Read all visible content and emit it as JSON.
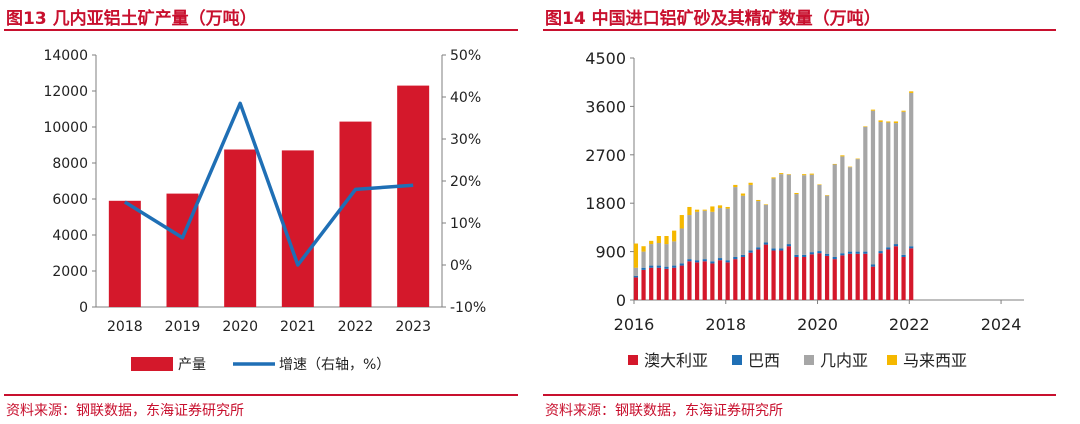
{
  "figures": [
    {
      "title": "图13 几内亚铝土矿产量（万吨）",
      "source": "资料来源：钢联数据，东海证券研究所"
    },
    {
      "title": "图14 中国进口铝矿砂及其精矿数量（万吨）",
      "source": "资料来源：钢联数据，东海证券研究所"
    }
  ],
  "colors": {
    "accent": "#c8102e",
    "bar": "#d4182b",
    "line": "#1f6fb5",
    "gray": "#a6a6a6",
    "yellow": "#f5b800"
  },
  "chart_data": [
    {
      "type": "bar",
      "title": "图13 几内亚铝土矿产量（万吨）",
      "categories": [
        "2018",
        "2019",
        "2020",
        "2021",
        "2022",
        "2023"
      ],
      "series": [
        {
          "name": "产量",
          "type": "bar",
          "axis": "left",
          "values": [
            5900,
            6300,
            8750,
            8700,
            10300,
            12300
          ]
        },
        {
          "name": "增速（右轴，%）",
          "type": "line",
          "axis": "right",
          "values": [
            15,
            6.5,
            38.5,
            0,
            18,
            19
          ]
        }
      ],
      "y_left": {
        "ticks": [
          "0",
          "2000",
          "4000",
          "6000",
          "8000",
          "10000",
          "12000",
          "14000"
        ],
        "range": [
          0,
          14000
        ]
      },
      "y_right": {
        "ticks": [
          "-10%",
          "0%",
          "10%",
          "20%",
          "30%",
          "40%",
          "50%"
        ],
        "range": [
          -10,
          50
        ]
      },
      "legend": {
        "position": "bottom",
        "items": [
          "产量",
          "增速（右轴，%）"
        ]
      },
      "grid": false
    },
    {
      "type": "bar",
      "stacked": true,
      "title": "图14 中国进口铝矿砂及其精矿数量（万吨）",
      "x_ticks": [
        "2016",
        "2018",
        "2020",
        "2022",
        "2024"
      ],
      "y_ticks": [
        "0",
        "900",
        "1800",
        "2700",
        "3600",
        "4500"
      ],
      "y_range": [
        0,
        4500
      ],
      "x_range": [
        2016,
        2024.5
      ],
      "x_start": "2016-01",
      "x_step_months": 2,
      "legend": {
        "position": "bottom",
        "items": [
          "澳大利亚",
          "巴西",
          "几内亚",
          "马来西亚"
        ]
      },
      "grid": false,
      "series": [
        {
          "name": "澳大利亚",
          "values": [
            420,
            560,
            600,
            600,
            580,
            600,
            640,
            720,
            700,
            720,
            680,
            740,
            700,
            760,
            800,
            880,
            940,
            1030,
            920,
            920,
            1000,
            800,
            800,
            850,
            870,
            820,
            760,
            830,
            860,
            860,
            860,
            620,
            870,
            940,
            1000,
            800,
            960
          ]
        },
        {
          "name": "巴西",
          "values": [
            30,
            40,
            40,
            40,
            40,
            40,
            40,
            40,
            40,
            40,
            40,
            40,
            40,
            40,
            40,
            40,
            40,
            40,
            40,
            40,
            40,
            40,
            40,
            40,
            40,
            40,
            40,
            40,
            40,
            40,
            40,
            40,
            40,
            40,
            40,
            40,
            40
          ]
        },
        {
          "name": "几内亚",
          "values": [
            150,
            300,
            400,
            420,
            420,
            450,
            650,
            820,
            900,
            900,
            920,
            930,
            960,
            1300,
            1100,
            1220,
            860,
            700,
            1300,
            1380,
            1290,
            1130,
            1480,
            1440,
            1230,
            1080,
            1720,
            1800,
            1570,
            1720,
            2320,
            2860,
            2400,
            2320,
            2250,
            2660,
            2850
          ]
        },
        {
          "name": "马来西亚",
          "values": [
            450,
            100,
            60,
            130,
            150,
            200,
            250,
            150,
            40,
            20,
            100,
            50,
            30,
            40,
            40,
            40,
            20,
            10,
            20,
            20,
            10,
            20,
            20,
            20,
            10,
            10,
            10,
            20,
            10,
            10,
            10,
            20,
            30,
            20,
            30,
            20,
            30
          ]
        }
      ]
    }
  ]
}
